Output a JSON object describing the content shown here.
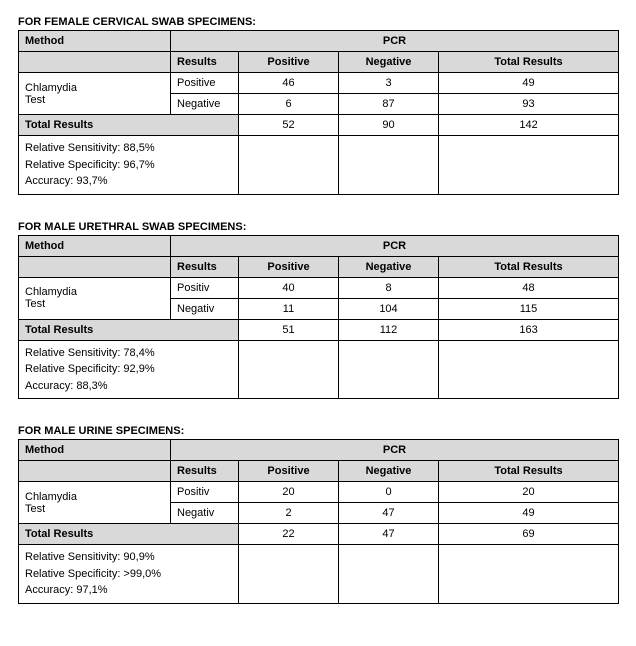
{
  "sections": [
    {
      "title": "FOR FEMALE CERVICAL SWAB SPECIMENS:",
      "method_label": "Method",
      "pcr_label": "PCR",
      "results_label": "Results",
      "positive_label": "Positive",
      "negative_label": "Negative",
      "total_results_label": "Total Results",
      "test_label_line1": "Chlamydia",
      "test_label_line2": "Test",
      "row_pos_label": "Positive",
      "row_neg_label": "Negative",
      "row_total_label": "Total Results",
      "pos_pos": "46",
      "pos_neg": "3",
      "pos_total": "49",
      "neg_pos": "6",
      "neg_neg": "87",
      "neg_total": "93",
      "tot_pos": "52",
      "tot_neg": "90",
      "tot_total": "142",
      "sensitivity": "Relative Sensitivity: 88,5%",
      "specificity": "Relative Specificity: 96,7%",
      "accuracy": "Accuracy: 93,7%"
    },
    {
      "title": "FOR MALE URETHRAL SWAB SPECIMENS:",
      "method_label": "Method",
      "pcr_label": "PCR",
      "results_label": "Results",
      "positive_label": "Positive",
      "negative_label": "Negative",
      "total_results_label": "Total Results",
      "test_label_line1": "Chlamydia",
      "test_label_line2": "Test",
      "row_pos_label": "Positiv",
      "row_neg_label": "Negativ",
      "row_total_label": "Total Results",
      "pos_pos": "40",
      "pos_neg": "8",
      "pos_total": "48",
      "neg_pos": "11",
      "neg_neg": "104",
      "neg_total": "115",
      "tot_pos": "51",
      "tot_neg": "112",
      "tot_total": "163",
      "sensitivity": "Relative Sensitivity: 78,4%",
      "specificity": "Relative Specificity: 92,9%",
      "accuracy": "Accuracy: 88,3%"
    },
    {
      "title": "FOR MALE URINE SPECIMENS:",
      "method_label": "Method",
      "pcr_label": "PCR",
      "results_label": "Results",
      "positive_label": "Positive",
      "negative_label": "Negative",
      "total_results_label": "Total Results",
      "test_label_line1": "Chlamydia",
      "test_label_line2": "Test",
      "row_pos_label": "Positiv",
      "row_neg_label": "Negativ",
      "row_total_label": "Total Results",
      "pos_pos": "20",
      "pos_neg": "0",
      "pos_total": "20",
      "neg_pos": "2",
      "neg_neg": "47",
      "neg_total": "49",
      "tot_pos": "22",
      "tot_neg": "47",
      "tot_total": "69",
      "sensitivity": "Relative Sensitivity: 90,9%",
      "specificity": "Relative Specificity: >99,0%",
      "accuracy": "Accuracy: 97,1%"
    }
  ]
}
